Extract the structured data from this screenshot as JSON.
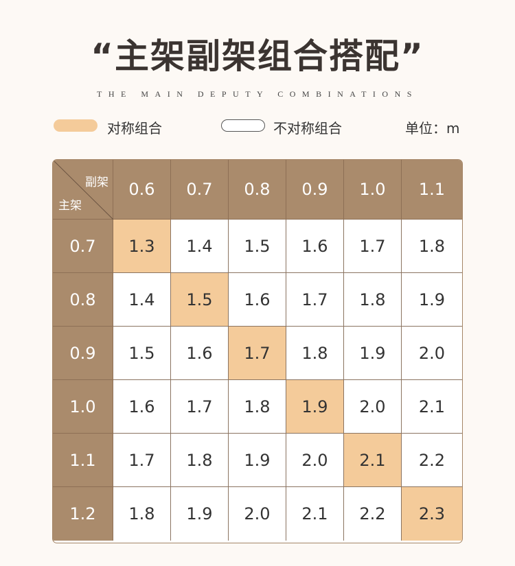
{
  "title": "“主架副架组合搭配”",
  "subtitle": "THE MAIN DEPUTY COMBINATIONS",
  "legend": {
    "symmetric_label": "对称组合",
    "asymmetric_label": "不对称组合",
    "unit_label": "单位：m",
    "symmetric_color": "#f4cb9a",
    "header_color": "#aa8b6c"
  },
  "table": {
    "corner_column_label": "副架",
    "corner_row_label": "主架",
    "column_headers": [
      "0.6",
      "0.7",
      "0.8",
      "0.9",
      "1.0",
      "1.1"
    ],
    "rows": [
      {
        "header": "0.7",
        "cells": [
          "1.3",
          "1.4",
          "1.5",
          "1.6",
          "1.7",
          "1.8"
        ],
        "symmetric_index": 0
      },
      {
        "header": "0.8",
        "cells": [
          "1.4",
          "1.5",
          "1.6",
          "1.7",
          "1.8",
          "1.9"
        ],
        "symmetric_index": 1
      },
      {
        "header": "0.9",
        "cells": [
          "1.5",
          "1.6",
          "1.7",
          "1.8",
          "1.9",
          "2.0"
        ],
        "symmetric_index": 2
      },
      {
        "header": "1.0",
        "cells": [
          "1.6",
          "1.7",
          "1.8",
          "1.9",
          "2.0",
          "2.1"
        ],
        "symmetric_index": 3
      },
      {
        "header": "1.1",
        "cells": [
          "1.7",
          "1.8",
          "1.9",
          "2.0",
          "2.1",
          "2.2"
        ],
        "symmetric_index": 4
      },
      {
        "header": "1.2",
        "cells": [
          "1.8",
          "1.9",
          "2.0",
          "2.1",
          "2.2",
          "2.3"
        ],
        "symmetric_index": 5
      }
    ]
  }
}
